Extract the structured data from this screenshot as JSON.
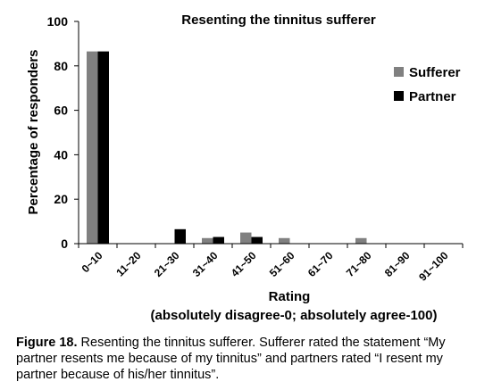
{
  "chart_data": {
    "type": "bar",
    "title": "Resenting the tinnitus sufferer",
    "xlabel": "Rating",
    "xlabel_sub": "(absolutely disagree-0; absolutely agree-100)",
    "ylabel": "Percentage of responders",
    "ylim": [
      0,
      100
    ],
    "yticks": [
      0,
      20,
      40,
      60,
      80,
      100
    ],
    "legend_position": "right",
    "grid": false,
    "categories": [
      "0~10",
      "11~20",
      "21~30",
      "31~40",
      "41~50",
      "51~60",
      "61~70",
      "71~80",
      "81~90",
      "91~100"
    ],
    "series": [
      {
        "name": "Sufferer",
        "color": "#808080",
        "values": [
          86.5,
          0,
          0,
          2.5,
          5,
          2.5,
          0,
          2.5,
          0,
          0
        ]
      },
      {
        "name": "Partner",
        "color": "#000000",
        "values": [
          86.5,
          0,
          6.5,
          3,
          3,
          0,
          0,
          0,
          0,
          0
        ]
      }
    ]
  },
  "caption": {
    "label": "Figure 18.",
    "text": " Resenting the tinnitus sufferer. Sufferer rated the statement “My partner resents me because of my tinnitus” and partners rated “I resent my partner because of his/her tinnitus”."
  }
}
